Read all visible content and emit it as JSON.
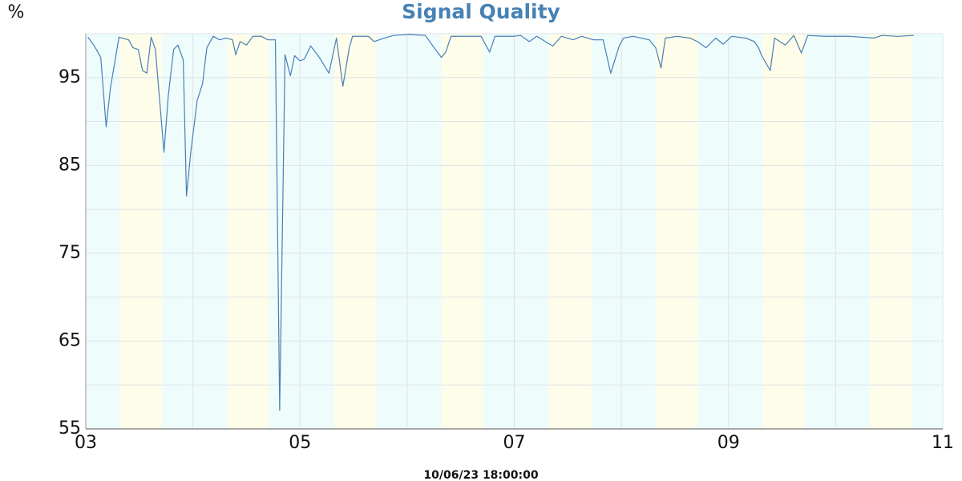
{
  "chart_data": {
    "type": "line",
    "title": "Signal Quality",
    "y_label": "%",
    "annotation": "10/06/23 18:00:00",
    "xlim": [
      3,
      11
    ],
    "xticks": [
      {
        "value": 3,
        "label": "03"
      },
      {
        "value": 5,
        "label": "05"
      },
      {
        "value": 7,
        "label": "07"
      },
      {
        "value": 9,
        "label": "09"
      },
      {
        "value": 11,
        "label": "11"
      }
    ],
    "xminor": [
      4,
      6,
      8,
      10
    ],
    "ylim": [
      55,
      100
    ],
    "yticks": [
      55,
      65,
      75,
      85,
      95
    ],
    "yminor": [
      60,
      70,
      80,
      90,
      100
    ],
    "grid": true,
    "background_color": "#eefcfc",
    "band_color": "#fdfdea",
    "bands": [
      [
        3.32,
        3.71
      ],
      [
        4.32,
        4.71
      ],
      [
        5.32,
        5.71
      ],
      [
        6.32,
        6.71
      ],
      [
        7.32,
        7.72
      ],
      [
        8.32,
        8.71
      ],
      [
        9.32,
        9.71
      ],
      [
        10.32,
        10.71
      ]
    ],
    "series": [
      {
        "name": "Signal Quality",
        "color": "#4a7fb5",
        "x": [
          3.02,
          3.08,
          3.14,
          3.19,
          3.23,
          3.31,
          3.4,
          3.44,
          3.49,
          3.53,
          3.57,
          3.61,
          3.65,
          3.73,
          3.77,
          3.82,
          3.86,
          3.91,
          3.94,
          3.98,
          4.04,
          4.09,
          4.13,
          4.19,
          4.25,
          4.31,
          4.37,
          4.4,
          4.44,
          4.5,
          4.56,
          4.64,
          4.7,
          4.77,
          4.81,
          4.86,
          4.91,
          4.95,
          5.0,
          5.04,
          5.1,
          5.18,
          5.27,
          5.34,
          5.4,
          5.46,
          5.49,
          5.64,
          5.69,
          5.79,
          5.87,
          6.02,
          6.17,
          6.24,
          6.32,
          6.36,
          6.41,
          6.54,
          6.69,
          6.77,
          6.82,
          6.99,
          7.06,
          7.14,
          7.21,
          7.29,
          7.36,
          7.44,
          7.55,
          7.63,
          7.74,
          7.83,
          7.9,
          7.98,
          8.02,
          8.11,
          8.26,
          8.32,
          8.37,
          8.41,
          8.52,
          8.64,
          8.71,
          8.79,
          8.88,
          8.95,
          9.03,
          9.16,
          9.24,
          9.28,
          9.31,
          9.39,
          9.43,
          9.53,
          9.61,
          9.68,
          9.74,
          9.91,
          10.13,
          10.36,
          10.43,
          10.58,
          10.73
        ],
        "values": [
          99.6,
          98.6,
          97.3,
          89.4,
          93.8,
          99.6,
          99.3,
          98.4,
          98.2,
          95.8,
          95.5,
          99.6,
          98.2,
          86.5,
          92.9,
          98.2,
          98.7,
          97.0,
          81.5,
          86.5,
          92.4,
          94.3,
          98.4,
          99.7,
          99.3,
          99.5,
          99.3,
          97.6,
          99.1,
          98.7,
          99.7,
          99.7,
          99.3,
          99.3,
          57.1,
          97.6,
          95.2,
          97.5,
          96.9,
          97.1,
          98.6,
          97.3,
          95.5,
          99.5,
          94.0,
          98.4,
          99.7,
          99.7,
          99.1,
          99.5,
          99.8,
          99.9,
          99.8,
          98.6,
          97.3,
          97.9,
          99.7,
          99.7,
          99.7,
          97.9,
          99.7,
          99.7,
          99.8,
          99.1,
          99.7,
          99.1,
          98.6,
          99.7,
          99.3,
          99.7,
          99.3,
          99.3,
          95.5,
          98.6,
          99.5,
          99.7,
          99.3,
          98.4,
          96.1,
          99.5,
          99.7,
          99.5,
          99.1,
          98.4,
          99.5,
          98.8,
          99.7,
          99.5,
          99.1,
          98.4,
          97.5,
          95.8,
          99.5,
          98.7,
          99.8,
          97.8,
          99.8,
          99.7,
          99.7,
          99.5,
          99.8,
          99.7,
          99.8
        ]
      }
    ]
  }
}
